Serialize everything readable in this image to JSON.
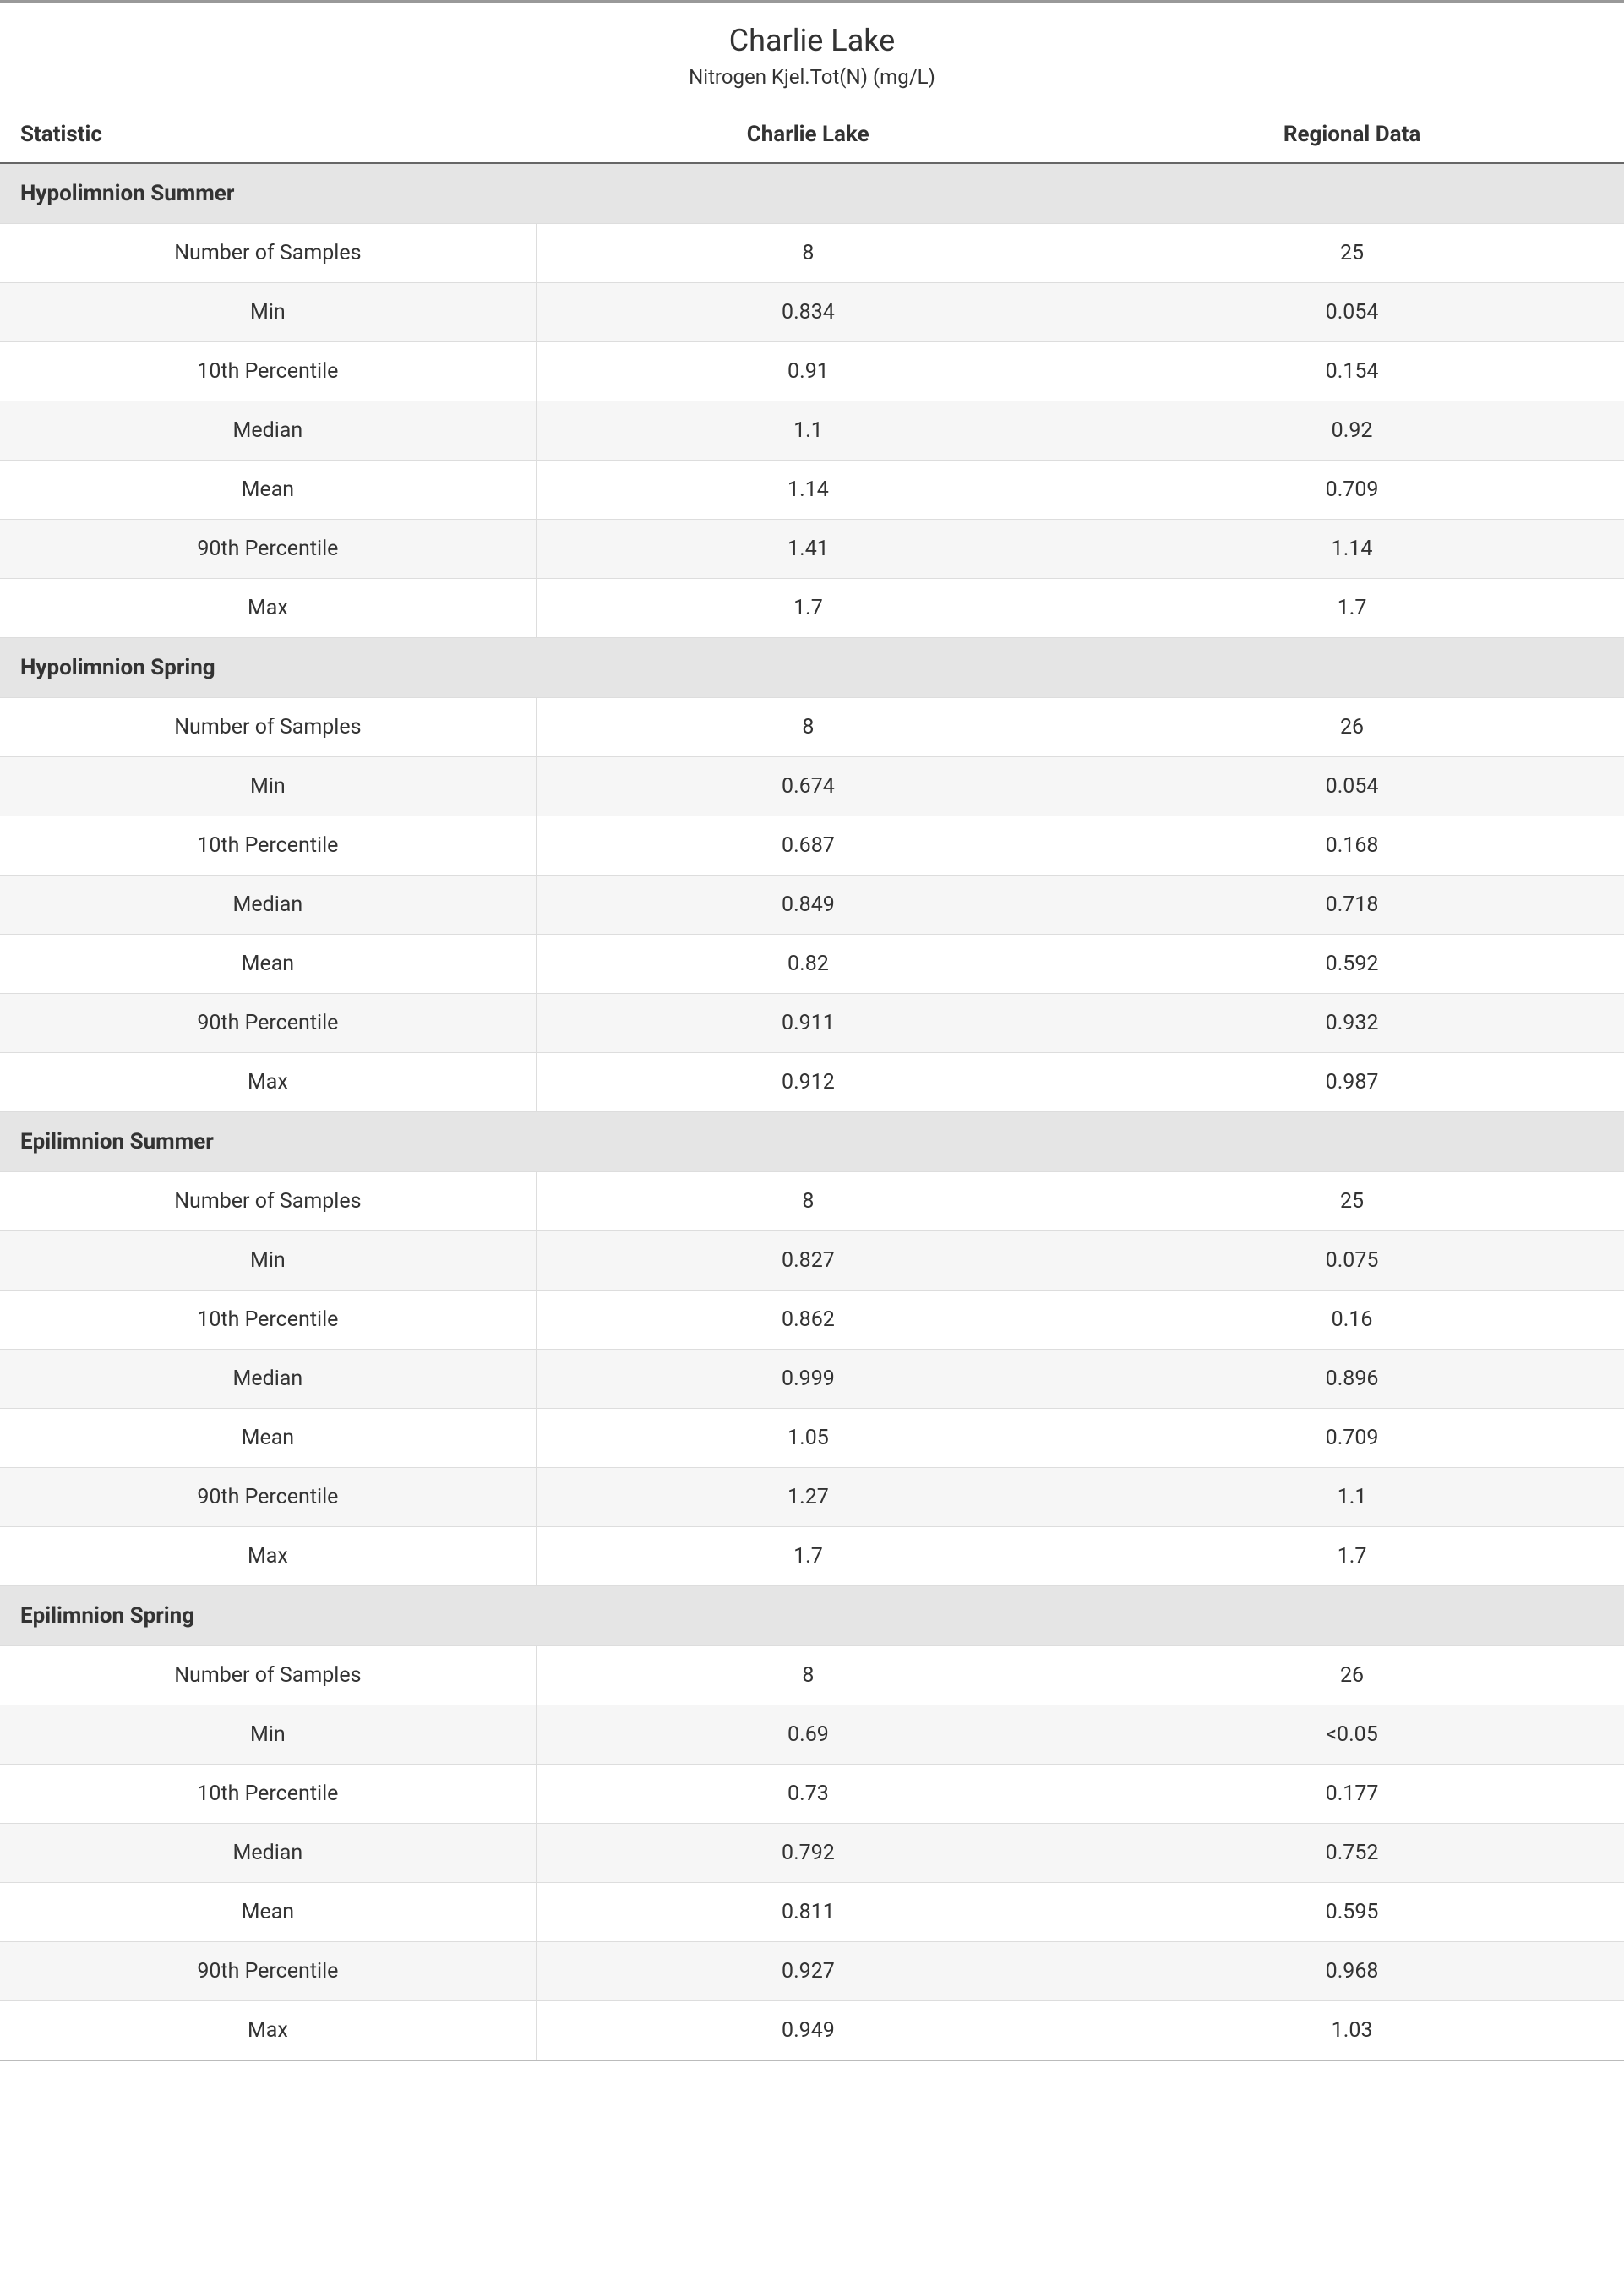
{
  "header": {
    "title": "Charlie Lake",
    "subtitle": "Nitrogen Kjel.Tot(N) (mg/L)"
  },
  "columns": {
    "statistic": "Statistic",
    "site": "Charlie Lake",
    "regional": "Regional Data"
  },
  "colors": {
    "top_rule": "#999999",
    "header_rule": "#666666",
    "row_border": "#dddddd",
    "section_bg": "#e5e5e5",
    "row_alt_bg": "#f6f6f6",
    "text": "#333333",
    "background": "#ffffff"
  },
  "sections": [
    {
      "name": "Hypolimnion Summer",
      "rows": [
        {
          "stat": "Number of Samples",
          "site": "8",
          "regional": "25"
        },
        {
          "stat": "Min",
          "site": "0.834",
          "regional": "0.054"
        },
        {
          "stat": "10th Percentile",
          "site": "0.91",
          "regional": "0.154"
        },
        {
          "stat": "Median",
          "site": "1.1",
          "regional": "0.92"
        },
        {
          "stat": "Mean",
          "site": "1.14",
          "regional": "0.709"
        },
        {
          "stat": "90th Percentile",
          "site": "1.41",
          "regional": "1.14"
        },
        {
          "stat": "Max",
          "site": "1.7",
          "regional": "1.7"
        }
      ]
    },
    {
      "name": "Hypolimnion Spring",
      "rows": [
        {
          "stat": "Number of Samples",
          "site": "8",
          "regional": "26"
        },
        {
          "stat": "Min",
          "site": "0.674",
          "regional": "0.054"
        },
        {
          "stat": "10th Percentile",
          "site": "0.687",
          "regional": "0.168"
        },
        {
          "stat": "Median",
          "site": "0.849",
          "regional": "0.718"
        },
        {
          "stat": "Mean",
          "site": "0.82",
          "regional": "0.592"
        },
        {
          "stat": "90th Percentile",
          "site": "0.911",
          "regional": "0.932"
        },
        {
          "stat": "Max",
          "site": "0.912",
          "regional": "0.987"
        }
      ]
    },
    {
      "name": "Epilimnion Summer",
      "rows": [
        {
          "stat": "Number of Samples",
          "site": "8",
          "regional": "25"
        },
        {
          "stat": "Min",
          "site": "0.827",
          "regional": "0.075"
        },
        {
          "stat": "10th Percentile",
          "site": "0.862",
          "regional": "0.16"
        },
        {
          "stat": "Median",
          "site": "0.999",
          "regional": "0.896"
        },
        {
          "stat": "Mean",
          "site": "1.05",
          "regional": "0.709"
        },
        {
          "stat": "90th Percentile",
          "site": "1.27",
          "regional": "1.1"
        },
        {
          "stat": "Max",
          "site": "1.7",
          "regional": "1.7"
        }
      ]
    },
    {
      "name": "Epilimnion Spring",
      "rows": [
        {
          "stat": "Number of Samples",
          "site": "8",
          "regional": "26"
        },
        {
          "stat": "Min",
          "site": "0.69",
          "regional": "<0.05"
        },
        {
          "stat": "10th Percentile",
          "site": "0.73",
          "regional": "0.177"
        },
        {
          "stat": "Median",
          "site": "0.792",
          "regional": "0.752"
        },
        {
          "stat": "Mean",
          "site": "0.811",
          "regional": "0.595"
        },
        {
          "stat": "90th Percentile",
          "site": "0.927",
          "regional": "0.968"
        },
        {
          "stat": "Max",
          "site": "0.949",
          "regional": "1.03"
        }
      ]
    }
  ]
}
